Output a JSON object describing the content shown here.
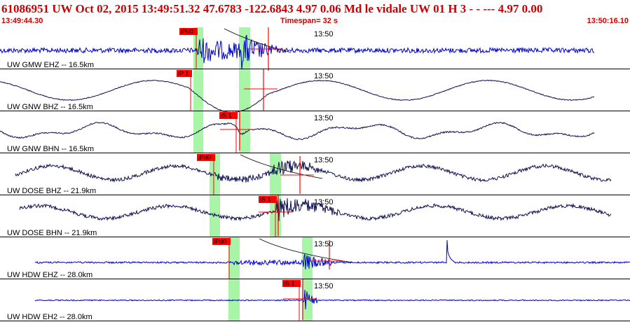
{
  "header": {
    "title": "61086951 UW Oct 02, 2015 13:49:51.32   47.6783 -122.6843  4.97 0.06 Md le    vidale   UW 01 H    3  -  - ---   4.97 0.00",
    "start_time": "13:49:44.30",
    "timespan": "Timespan=  32 s",
    "end_time": "13:50:16.10"
  },
  "colors": {
    "title_red": "#cc0000",
    "pick_red": "#ff0000",
    "highlight_green": "#a8f5a8",
    "vertical_trace": "#0000cc",
    "horizontal_trace": "#101050",
    "divider": "#000000"
  },
  "traces": [
    {
      "label": "UW GMW EHZ -- 16.5km",
      "time_mark": "13:50",
      "pick": "iPd0",
      "component": "vertical"
    },
    {
      "label": "UW GNW BHZ -- 16.5km",
      "time_mark": "13:50",
      "pick": "iP 1",
      "component": "vertical-long-period"
    },
    {
      "label": "UW GNW BHN -- 16.5km",
      "time_mark": "13:50",
      "pick": "iS 1",
      "component": "horizontal"
    },
    {
      "label": "UW DOSE BHZ -- 21.9km",
      "time_mark": "13:50",
      "pick": "iPd0",
      "component": "vertical-broadband"
    },
    {
      "label": "UW DOSE BHN -- 21.9km",
      "time_mark": "13:50",
      "pick": "iS 1",
      "component": "horizontal"
    },
    {
      "label": "UW HDW EHZ -- 28.0km",
      "time_mark": "13:50",
      "pick": "iPd0",
      "component": "vertical"
    },
    {
      "label": "UW HDW EH2 -- 28.0km",
      "time_mark": "13:50",
      "pick": "iS 1",
      "component": "horizontal"
    }
  ]
}
